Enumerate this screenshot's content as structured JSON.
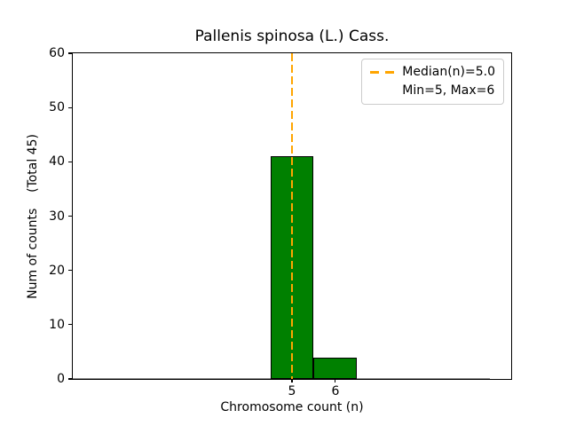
{
  "chart_data": {
    "type": "bar",
    "title": "Pallenis spinosa (L.) Cass.",
    "xlabel": "Chromosome count (n)",
    "ylabel": "Num of counts    (Total 45)",
    "total_counts": 45,
    "categories": [
      5,
      6
    ],
    "values": [
      41,
      4
    ],
    "bar_width": 1,
    "xlim": [
      -0.05,
      10.05
    ],
    "ylim": [
      0,
      60
    ],
    "yticks": [
      0,
      10,
      20,
      30,
      40,
      50,
      60
    ],
    "xticks": [
      5,
      6
    ],
    "bar_color": "#008000",
    "bar_edge_color": "#000000",
    "background_color": "#ffffff",
    "median_line": {
      "x": 5.0,
      "color": "#FFA500",
      "style": "dashed"
    },
    "zero_line_range": [
      -0.05,
      9.55
    ],
    "grid": false,
    "legend": {
      "position": "upper right",
      "items": [
        {
          "marker": "dashed-line",
          "color": "#FFA500",
          "label": "Median(n)=5.0"
        },
        {
          "marker": "none",
          "color": "",
          "label": "Min=5, Max=6"
        }
      ]
    }
  }
}
